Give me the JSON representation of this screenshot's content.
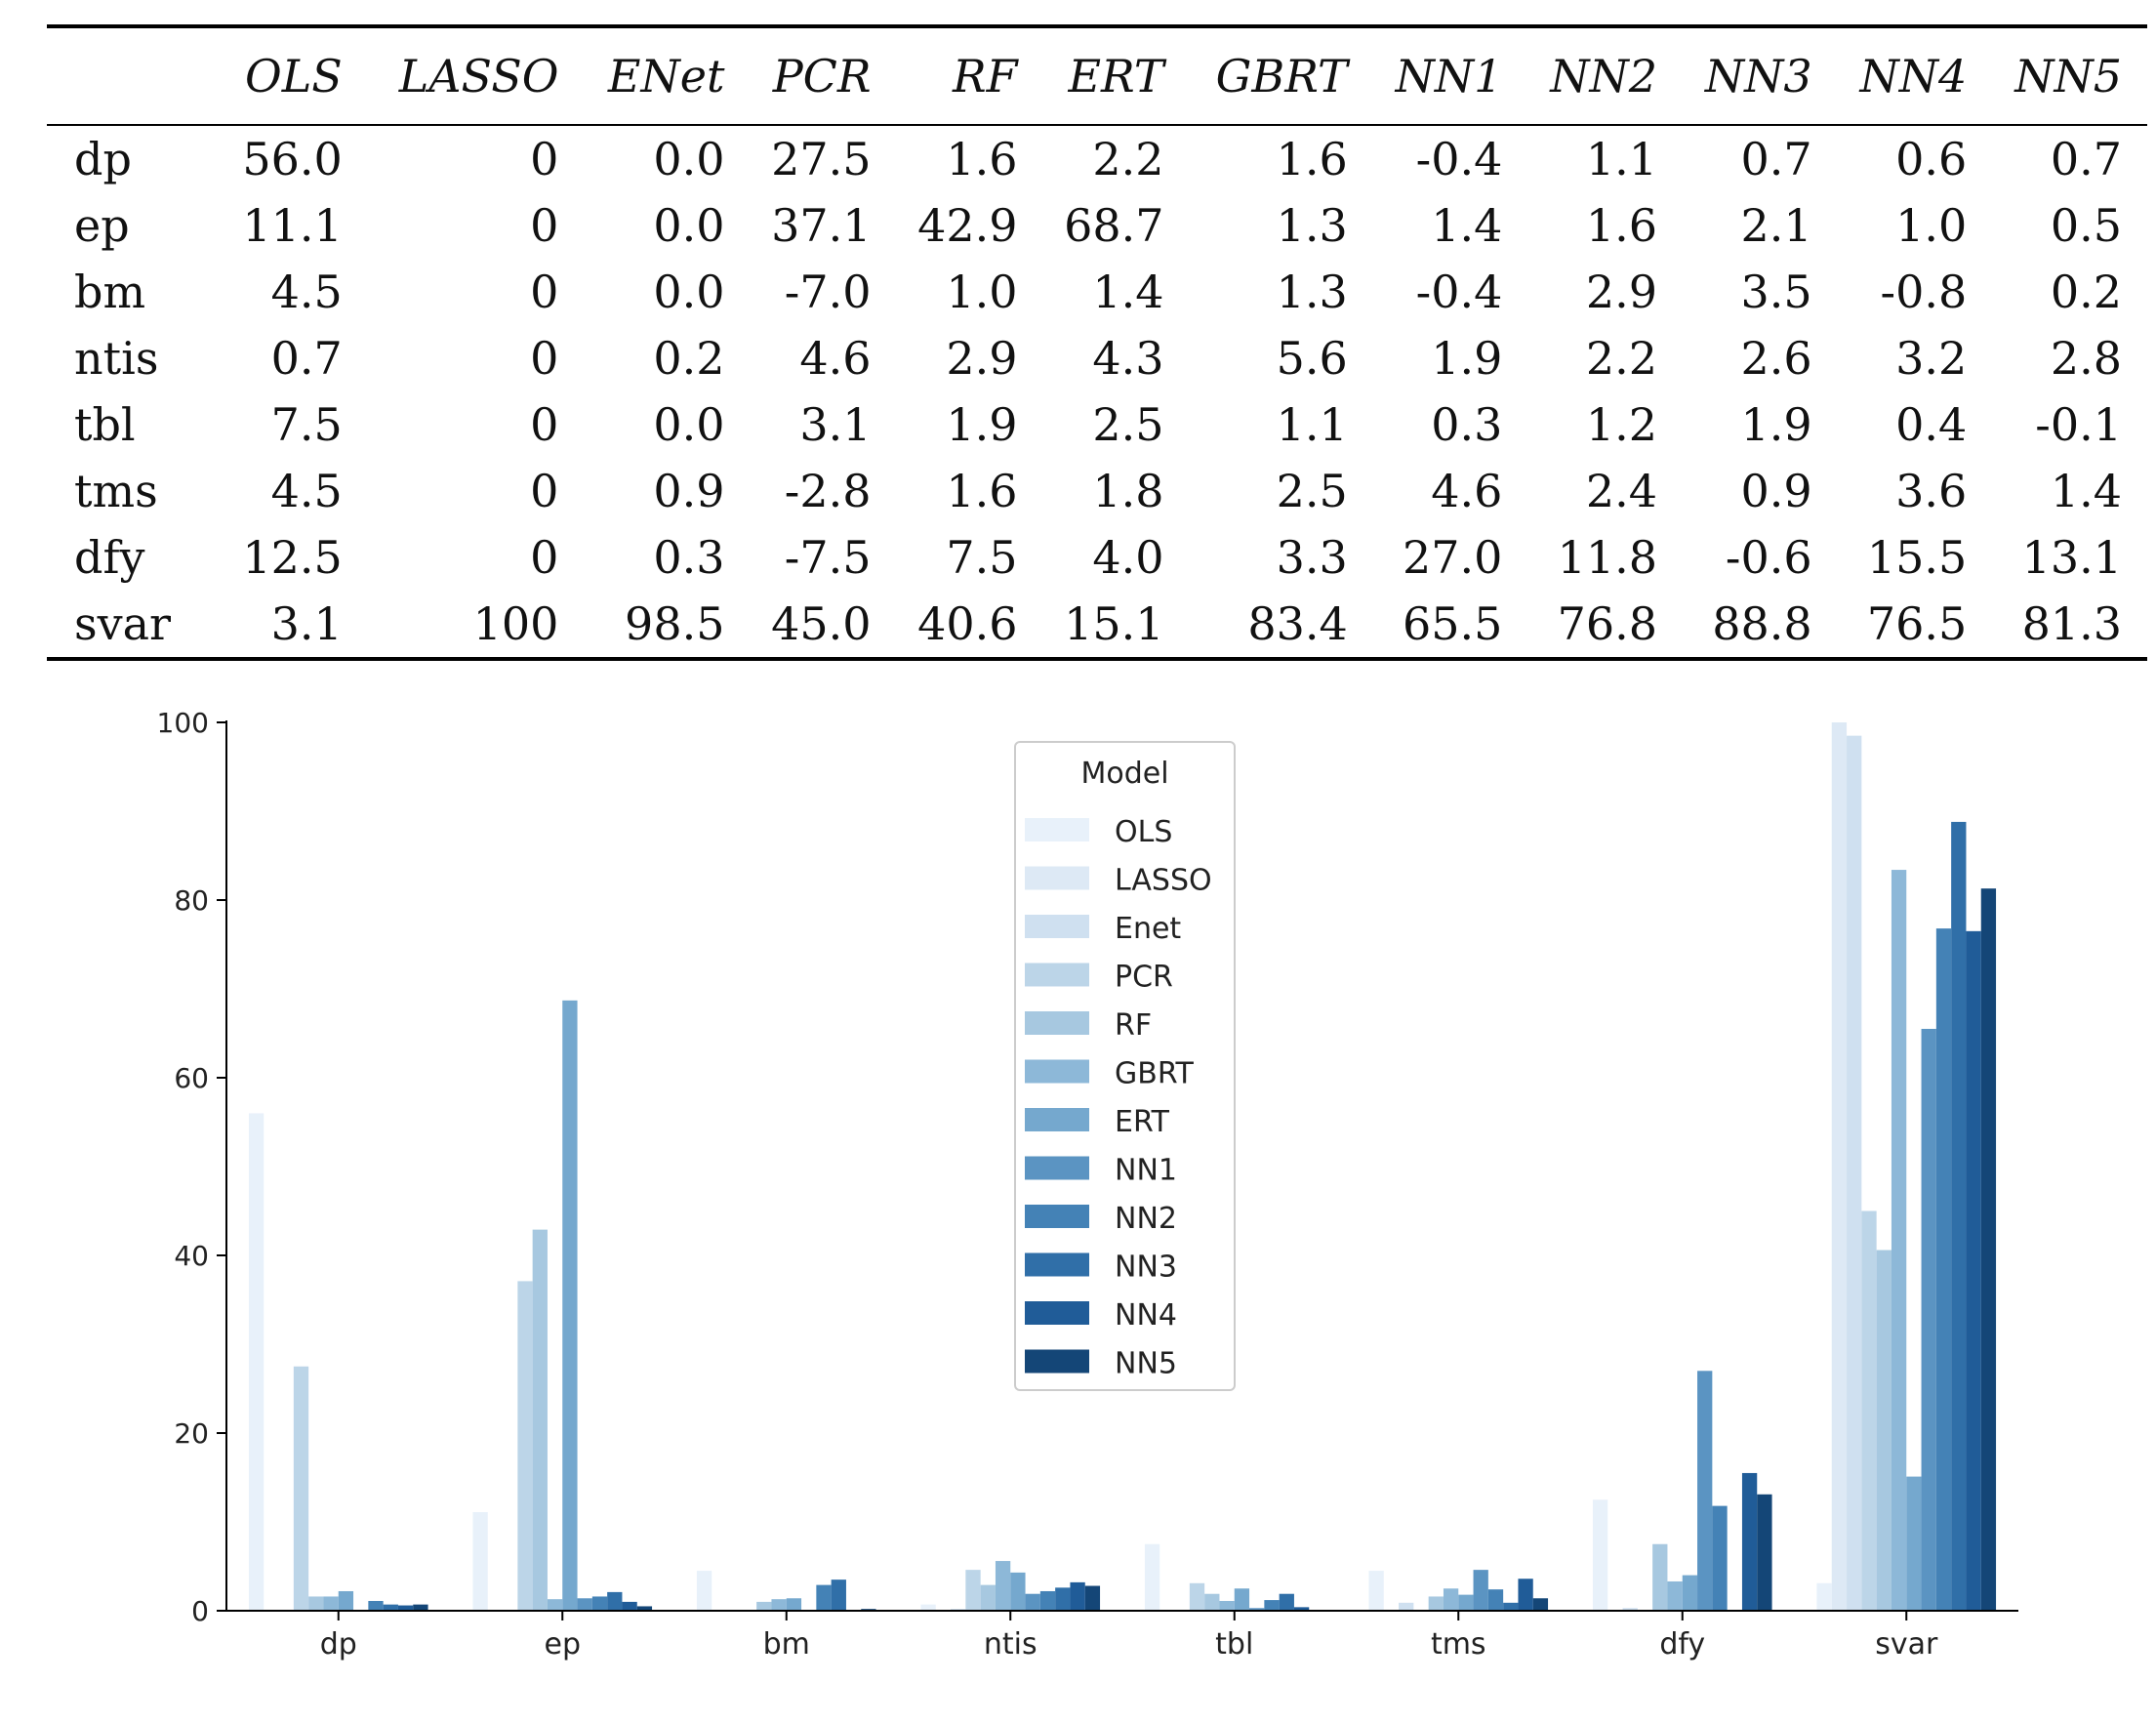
{
  "table": {
    "columns": [
      "",
      "OLS",
      "LASSO",
      "ENet",
      "PCR",
      "RF",
      "ERT",
      "GBRT",
      "NN1",
      "NN2",
      "NN3",
      "NN4",
      "NN5"
    ],
    "rows": [
      {
        "label": "dp",
        "cells": [
          "56.0",
          "0",
          "0.0",
          "27.5",
          "1.6",
          "2.2",
          "1.6",
          "-0.4",
          "1.1",
          "0.7",
          "0.6",
          "0.7"
        ]
      },
      {
        "label": "ep",
        "cells": [
          "11.1",
          "0",
          "0.0",
          "37.1",
          "42.9",
          "68.7",
          "1.3",
          "1.4",
          "1.6",
          "2.1",
          "1.0",
          "0.5"
        ]
      },
      {
        "label": "bm",
        "cells": [
          "4.5",
          "0",
          "0.0",
          "-7.0",
          "1.0",
          "1.4",
          "1.3",
          "-0.4",
          "2.9",
          "3.5",
          "-0.8",
          "0.2"
        ]
      },
      {
        "label": "ntis",
        "cells": [
          "0.7",
          "0",
          "0.2",
          "4.6",
          "2.9",
          "4.3",
          "5.6",
          "1.9",
          "2.2",
          "2.6",
          "3.2",
          "2.8"
        ]
      },
      {
        "label": "tbl",
        "cells": [
          "7.5",
          "0",
          "0.0",
          "3.1",
          "1.9",
          "2.5",
          "1.1",
          "0.3",
          "1.2",
          "1.9",
          "0.4",
          "-0.1"
        ]
      },
      {
        "label": "tms",
        "cells": [
          "4.5",
          "0",
          "0.9",
          "-2.8",
          "1.6",
          "1.8",
          "2.5",
          "4.6",
          "2.4",
          "0.9",
          "3.6",
          "1.4"
        ]
      },
      {
        "label": "dfy",
        "cells": [
          "12.5",
          "0",
          "0.3",
          "-7.5",
          "7.5",
          "4.0",
          "3.3",
          "27.0",
          "11.8",
          "-0.6",
          "15.5",
          "13.1"
        ]
      },
      {
        "label": "svar",
        "cells": [
          "3.1",
          "100",
          "98.5",
          "45.0",
          "40.6",
          "15.1",
          "83.4",
          "65.5",
          "76.8",
          "88.8",
          "76.5",
          "81.3"
        ]
      }
    ]
  },
  "chart_data": {
    "type": "bar",
    "categories": [
      "dp",
      "ep",
      "bm",
      "ntis",
      "tbl",
      "tms",
      "dfy",
      "svar"
    ],
    "ylim": [
      0,
      100
    ],
    "yticks": [
      "0",
      "20",
      "40",
      "60",
      "80",
      "100"
    ],
    "xlabel": "",
    "ylabel": "",
    "grid": false,
    "legend": {
      "title": "Model",
      "placement": "top-center"
    },
    "series": [
      {
        "name": "OLS",
        "color": "#e8f1fa",
        "values": [
          56.0,
          11.1,
          4.5,
          0.7,
          7.5,
          4.5,
          12.5,
          3.1
        ]
      },
      {
        "name": "LASSO",
        "color": "#dde9f5",
        "values": [
          0,
          0,
          0,
          0,
          0,
          0,
          0,
          100
        ]
      },
      {
        "name": "Enet",
        "color": "#cfe0f0",
        "values": [
          0.0,
          0.0,
          0.0,
          0.2,
          0.0,
          0.9,
          0.3,
          98.5
        ]
      },
      {
        "name": "PCR",
        "color": "#bcd5e8",
        "values": [
          27.5,
          37.1,
          -7.0,
          4.6,
          3.1,
          -2.8,
          -7.5,
          45.0
        ]
      },
      {
        "name": "RF",
        "color": "#a7c8e0",
        "values": [
          1.6,
          42.9,
          1.0,
          2.9,
          1.9,
          1.6,
          7.5,
          40.6
        ]
      },
      {
        "name": "GBRT",
        "color": "#8db8d8",
        "values": [
          1.6,
          1.3,
          1.3,
          5.6,
          1.1,
          2.5,
          3.3,
          83.4
        ]
      },
      {
        "name": "ERT",
        "color": "#75a8ce",
        "values": [
          2.2,
          68.7,
          1.4,
          4.3,
          2.5,
          1.8,
          4.0,
          15.1
        ]
      },
      {
        "name": "NN1",
        "color": "#5b94c2",
        "values": [
          -0.4,
          1.4,
          -0.4,
          1.9,
          0.3,
          4.6,
          27.0,
          65.5
        ]
      },
      {
        "name": "NN2",
        "color": "#4482b6",
        "values": [
          1.1,
          1.6,
          2.9,
          2.2,
          1.2,
          2.4,
          11.8,
          76.8
        ]
      },
      {
        "name": "NN3",
        "color": "#306fa8",
        "values": [
          0.7,
          2.1,
          3.5,
          2.6,
          1.9,
          0.9,
          -0.6,
          88.8
        ]
      },
      {
        "name": "NN4",
        "color": "#205c98",
        "values": [
          0.6,
          1.0,
          -0.8,
          3.2,
          0.4,
          3.6,
          15.5,
          76.5
        ]
      },
      {
        "name": "NN5",
        "color": "#144677",
        "values": [
          0.7,
          0.5,
          0.2,
          2.8,
          -0.1,
          1.4,
          13.1,
          81.3
        ]
      }
    ]
  }
}
